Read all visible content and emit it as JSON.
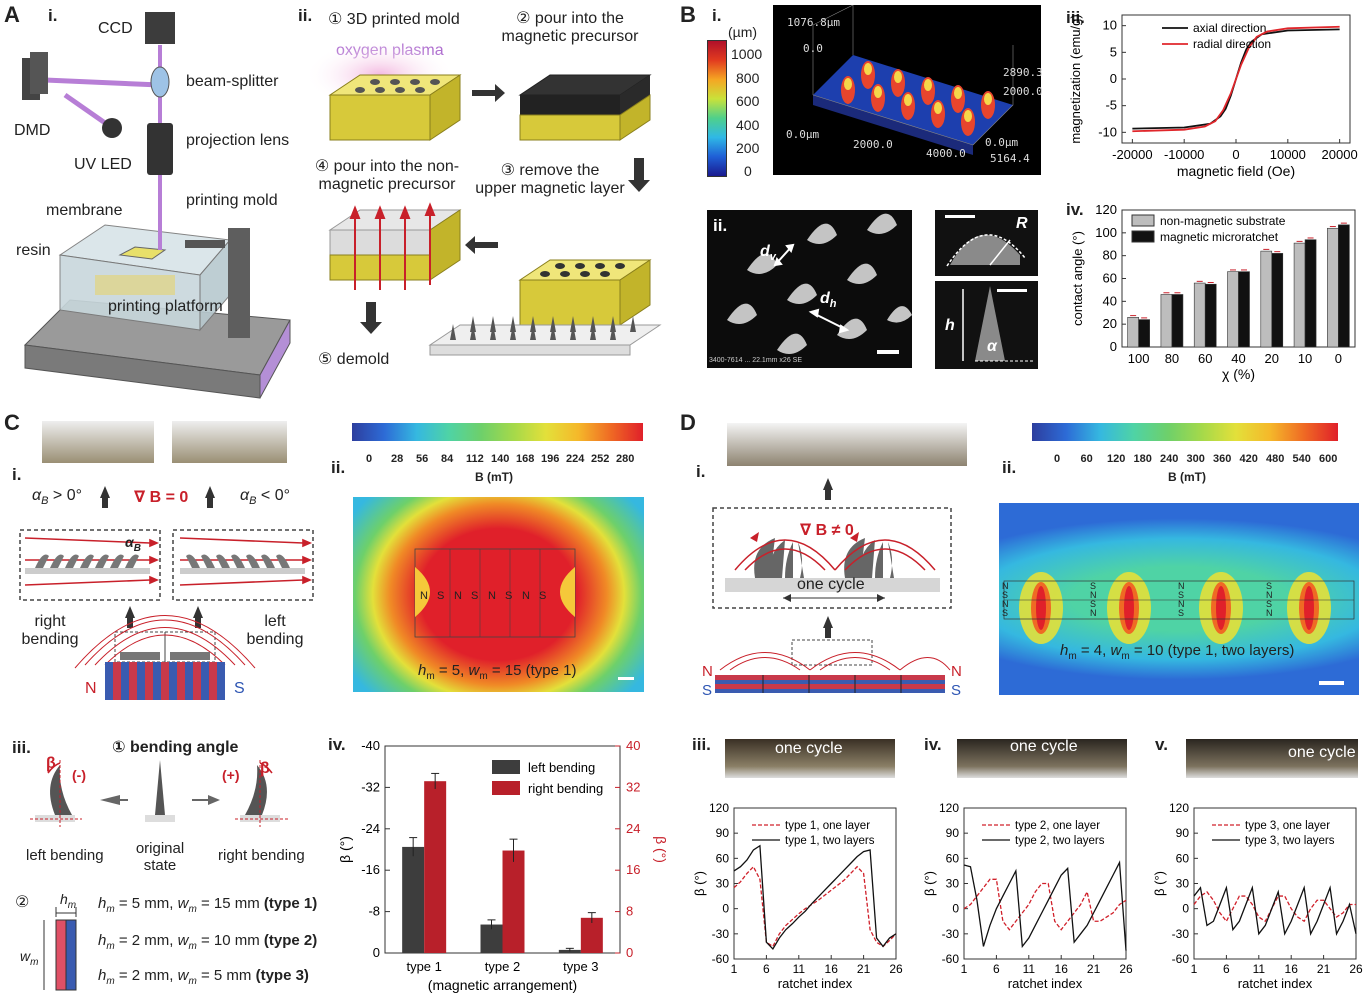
{
  "panelA": {
    "label": "A",
    "i": {
      "sub": "i.",
      "labels": [
        "CCD",
        "beam-splitter",
        "DMD",
        "projection lens",
        "UV LED",
        "membrane",
        "printing mold",
        "resin",
        "printing platform"
      ]
    },
    "ii": {
      "sub": "ii.",
      "step1": "① 3D printed mold",
      "plasma": "oxygen plasma",
      "step2a": "② pour into the",
      "step2b": "magnetic precursor",
      "step3a": "③ remove the",
      "step3b": "upper magnetic layer",
      "step4a": "④ pour into the non-",
      "step4b": "magnetic precursor",
      "step5": "⑤ demold"
    }
  },
  "panelB": {
    "label": "B",
    "i": {
      "sub": "i.",
      "unit": "(µm)",
      "scale": [
        "1000",
        "800",
        "600",
        "400",
        "200",
        "0"
      ],
      "axisTexts": [
        "1076.8µm",
        "0.0",
        "2890.3",
        "2000.0",
        "0.0µm",
        "2000.0",
        "4000.0",
        "5164.4",
        "0.0µm"
      ]
    },
    "ii": {
      "sub": "ii.",
      "dv": "d",
      "dvs": "v",
      "dh": "d",
      "dhs": "h",
      "R": "R",
      "h": "h",
      "alpha": "α",
      "footer": "3400-7614 ... 22.1mm x26 SE"
    },
    "iii": {
      "sub": "iii."
    },
    "iv": {
      "sub": "iv."
    }
  },
  "panelC": {
    "label": "C",
    "i": {
      "sub": "i.",
      "alphaPos": "α",
      "alphaPosSub": "B",
      "alphaPosRel": " > 0°",
      "gradB": "∇ B = 0",
      "alphaNeg": "α",
      "alphaNegSub": "B",
      "alphaNegRel": " < 0°",
      "alphaInset": "α",
      "alphaInsetSub": "B",
      "rightBending": [
        "right",
        "bending"
      ],
      "leftBending": [
        "left",
        "bending"
      ],
      "N": "N",
      "S": "S"
    },
    "ii": {
      "sub": "ii.",
      "scale": [
        "0",
        "28",
        "56",
        "84",
        "112",
        "140",
        "168",
        "196",
        "224",
        "252",
        "280"
      ],
      "unit": "B (mT)",
      "poles": [
        "N",
        "S",
        "N",
        "S",
        "N",
        "S",
        "N",
        "S"
      ],
      "caption": "h",
      "captionSub": "m",
      "captionMid": " = 5, ",
      "captionW": "w",
      "captionWSub": "m",
      "captionEnd": " = 15 (type 1)"
    },
    "iii": {
      "sub": "iii.",
      "title": "① bending angle",
      "beta": "β",
      "minus": "(-)",
      "plus": "(+)",
      "leftBending": "left bending",
      "original": [
        "original",
        "state"
      ],
      "rightBending": "right bending",
      "step2": "②",
      "hm": "h",
      "hmSub": "m",
      "wm": "w",
      "wmSub": "m",
      "types": [
        {
          "pre": " = 5 mm, ",
          "mid": " = 15 mm ",
          "tag": "(type 1)"
        },
        {
          "pre": " = 2 mm, ",
          "mid": " = 10 mm ",
          "tag": "(type 2)"
        },
        {
          "pre": " = 2 mm, ",
          "mid": " = 5 mm ",
          "tag": "(type 3)"
        }
      ]
    },
    "iv": {
      "sub": "iv."
    }
  },
  "panelD": {
    "label": "D",
    "i": {
      "sub": "i.",
      "gradB": "∇ B ≠ 0",
      "oneCycle": "one cycle",
      "N": "N",
      "S": "S"
    },
    "ii": {
      "sub": "ii.",
      "scale": [
        "0",
        "60",
        "120",
        "180",
        "240",
        "300",
        "360",
        "420",
        "480",
        "540",
        "600"
      ],
      "unit": "B (mT)",
      "poleCols": [
        "NSNS",
        "SNSN",
        "NSNS",
        "SNSN"
      ],
      "caption": "h",
      "captionSub": "m",
      "captionMid": " = 4, ",
      "captionW": "w",
      "captionWSub": "m",
      "captionEnd": " = 10 (type 1, two layers)"
    },
    "iii": {
      "sub": "iii.",
      "oneCycle": "one cycle"
    },
    "iv": {
      "sub": "iv.",
      "oneCycle": "one cycle"
    },
    "v": {
      "sub": "v.",
      "oneCycle": "one cycle"
    }
  },
  "colors": {
    "red": "#c8202a",
    "black": "#111111",
    "gray": "#bdbdbd",
    "darkbar": "#3d3d3d",
    "gold": "#c9b42c",
    "blue": "#2d55b3"
  },
  "chart_data": [
    {
      "id": "B-iii",
      "type": "line",
      "xlabel": "magnetic field (Oe)",
      "ylabel": "magnetization (emu/g)",
      "xlim": [
        -22000,
        22000
      ],
      "ylim": [
        -12,
        12
      ],
      "xticks": [
        "-20000",
        "-10000",
        "0",
        "10000",
        "20000"
      ],
      "yticks": [
        "-10",
        "-5",
        "0",
        "5",
        "10"
      ],
      "xtickvals": [
        -20000,
        -10000,
        0,
        10000,
        20000
      ],
      "ytickvals": [
        -10,
        -5,
        0,
        5,
        10
      ],
      "series": [
        {
          "name": "axial direction",
          "color": "#111111",
          "x": [
            -20000,
            -10000,
            -5000,
            -3000,
            -2000,
            -1000,
            0,
            1000,
            2000,
            3000,
            5000,
            10000,
            20000
          ],
          "y": [
            -9.3,
            -9.1,
            -8.4,
            -7.0,
            -5.6,
            -3.1,
            0,
            3.1,
            5.6,
            7.0,
            8.4,
            9.1,
            9.3
          ]
        },
        {
          "name": "radial direction",
          "color": "#e0262b",
          "x": [
            -20000,
            -10000,
            -6000,
            -4000,
            -2500,
            -1000,
            0,
            1000,
            2500,
            4000,
            6000,
            10000,
            20000
          ],
          "y": [
            -9.8,
            -9.5,
            -8.9,
            -7.9,
            -5.9,
            -2.7,
            0,
            2.7,
            5.9,
            7.9,
            8.9,
            9.5,
            9.8
          ]
        }
      ]
    },
    {
      "id": "B-iv",
      "type": "bar",
      "xlabel": "χ (%)",
      "ylabel": "contact angle (°)",
      "ylim": [
        0,
        120
      ],
      "yticks": [
        "0",
        "20",
        "40",
        "60",
        "80",
        "100",
        "120"
      ],
      "ytickvals": [
        0,
        20,
        40,
        60,
        80,
        100,
        120
      ],
      "categories": [
        "100",
        "80",
        "60",
        "40",
        "20",
        "10",
        "0"
      ],
      "series": [
        {
          "name": "non-magnetic substrate",
          "color": "#bdbdbd",
          "values": [
            26,
            46,
            56,
            66,
            84,
            91,
            104
          ]
        },
        {
          "name": "magnetic microratchet",
          "color": "#111111",
          "values": [
            24,
            46,
            55,
            66,
            82,
            94,
            107
          ]
        }
      ]
    },
    {
      "id": "C-iv",
      "type": "bar",
      "xlabel": "(magnetic arrangement)",
      "ylabel": "β (°)",
      "ylabel2": "β (°)",
      "ylim_left": [
        0,
        -40
      ],
      "ylim_right": [
        0,
        40
      ],
      "yticks_left": [
        "0",
        "-8",
        "-16",
        "-24",
        "-32",
        "-40"
      ],
      "yticks_right": [
        "0",
        "8",
        "16",
        "24",
        "32",
        "40"
      ],
      "categories": [
        "type 1",
        "type 2",
        "type 3"
      ],
      "series": [
        {
          "name": "left bending",
          "color": "#3d3d3d",
          "values": [
            -20.5,
            -5.5,
            -0.6
          ],
          "err": [
            1.8,
            0.9,
            0.3
          ]
        },
        {
          "name": "right bending",
          "color": "#b8202a",
          "values": [
            33.2,
            19.8,
            6.8
          ],
          "err": [
            1.5,
            2.2,
            1.0
          ]
        }
      ]
    },
    {
      "id": "D-iii",
      "type": "line",
      "xlabel": "ratchet index",
      "ylabel": "β (°)",
      "xlim": [
        1,
        26
      ],
      "ylim": [
        -60,
        120
      ],
      "xticks": [
        "1",
        "6",
        "11",
        "16",
        "21",
        "26"
      ],
      "yticks": [
        "-60",
        "-30",
        "0",
        "30",
        "60",
        "90",
        "120"
      ],
      "series": [
        {
          "name": "type 1, one layer",
          "color": "#d0202a",
          "dashed": true,
          "x": [
            1,
            2,
            3,
            4,
            5,
            6,
            7,
            8,
            9,
            10,
            11,
            12,
            13,
            14,
            15,
            16,
            17,
            18,
            19,
            20,
            21,
            22,
            23,
            24,
            25,
            26
          ],
          "y": [
            25,
            32,
            42,
            50,
            35,
            -40,
            -45,
            -30,
            -20,
            -13,
            -6,
            0,
            5,
            10,
            16,
            22,
            28,
            34,
            42,
            50,
            42,
            -25,
            -40,
            -45,
            -38,
            -30
          ]
        },
        {
          "name": "type 1, two layers",
          "color": "#111111",
          "dashed": false,
          "x": [
            1,
            2,
            3,
            4,
            5,
            6,
            7,
            8,
            9,
            10,
            11,
            12,
            13,
            14,
            15,
            16,
            17,
            18,
            19,
            20,
            21,
            22,
            23,
            24,
            25,
            26
          ],
          "y": [
            45,
            50,
            58,
            70,
            75,
            -40,
            -48,
            -35,
            -25,
            -18,
            -10,
            -3,
            6,
            14,
            22,
            30,
            38,
            46,
            54,
            62,
            68,
            70,
            -35,
            -45,
            -35,
            -30
          ]
        }
      ]
    },
    {
      "id": "D-iv",
      "type": "line",
      "xlabel": "ratchet index",
      "ylabel": "β (°)",
      "xlim": [
        1,
        26
      ],
      "ylim": [
        -60,
        120
      ],
      "xticks": [
        "1",
        "6",
        "11",
        "16",
        "21",
        "26"
      ],
      "yticks": [
        "-60",
        "-30",
        "0",
        "30",
        "60",
        "90",
        "120"
      ],
      "series": [
        {
          "name": "type 2, one layer",
          "color": "#d0202a",
          "dashed": true,
          "x": [
            1,
            2,
            3,
            4,
            5,
            6,
            7,
            8,
            9,
            10,
            11,
            12,
            13,
            14,
            15,
            16,
            17,
            18,
            19,
            20,
            21,
            22,
            23,
            24,
            25,
            26
          ],
          "y": [
            0,
            5,
            15,
            25,
            35,
            35,
            -15,
            -25,
            -15,
            -5,
            5,
            20,
            30,
            30,
            -15,
            -25,
            -15,
            -5,
            5,
            20,
            -15,
            -15,
            -10,
            -5,
            5,
            10
          ]
        },
        {
          "name": "type 2, two layers",
          "color": "#111111",
          "dashed": false,
          "x": [
            1,
            2,
            3,
            4,
            5,
            6,
            7,
            8,
            9,
            10,
            11,
            12,
            13,
            14,
            15,
            16,
            17,
            18,
            19,
            20,
            21,
            22,
            23,
            24,
            25,
            26
          ],
          "y": [
            52,
            50,
            10,
            -45,
            -20,
            0,
            15,
            30,
            45,
            -45,
            -35,
            -20,
            -5,
            10,
            25,
            40,
            48,
            -40,
            -30,
            -20,
            -5,
            10,
            25,
            40,
            55,
            -50
          ]
        }
      ]
    },
    {
      "id": "D-v",
      "type": "line",
      "xlabel": "ratchet index",
      "ylabel": "β (°)",
      "xlim": [
        1,
        26
      ],
      "ylim": [
        -60,
        120
      ],
      "xticks": [
        "1",
        "6",
        "11",
        "16",
        "21",
        "26"
      ],
      "yticks": [
        "-60",
        "-30",
        "0",
        "30",
        "60",
        "90",
        "120"
      ],
      "series": [
        {
          "name": "type 3, one layer",
          "color": "#d0202a",
          "dashed": true,
          "x": [
            1,
            2,
            3,
            4,
            5,
            6,
            7,
            8,
            9,
            10,
            11,
            12,
            13,
            14,
            15,
            16,
            17,
            18,
            19,
            20,
            21,
            22,
            23,
            24,
            25,
            26
          ],
          "y": [
            5,
            15,
            20,
            10,
            -5,
            -15,
            0,
            15,
            15,
            5,
            -10,
            -15,
            0,
            15,
            15,
            0,
            -10,
            -15,
            0,
            10,
            10,
            0,
            -10,
            -5,
            5,
            5
          ]
        },
        {
          "name": "type 3, two layers",
          "color": "#111111",
          "dashed": false,
          "x": [
            1,
            2,
            3,
            4,
            5,
            6,
            7,
            8,
            9,
            10,
            11,
            12,
            13,
            14,
            15,
            16,
            17,
            18,
            19,
            20,
            21,
            22,
            23,
            24,
            25,
            26
          ],
          "y": [
            15,
            25,
            -20,
            -15,
            5,
            25,
            -25,
            -15,
            5,
            25,
            -30,
            -20,
            0,
            20,
            -30,
            -15,
            5,
            25,
            -30,
            -15,
            5,
            25,
            -30,
            -15,
            5,
            -30
          ]
        }
      ]
    }
  ]
}
